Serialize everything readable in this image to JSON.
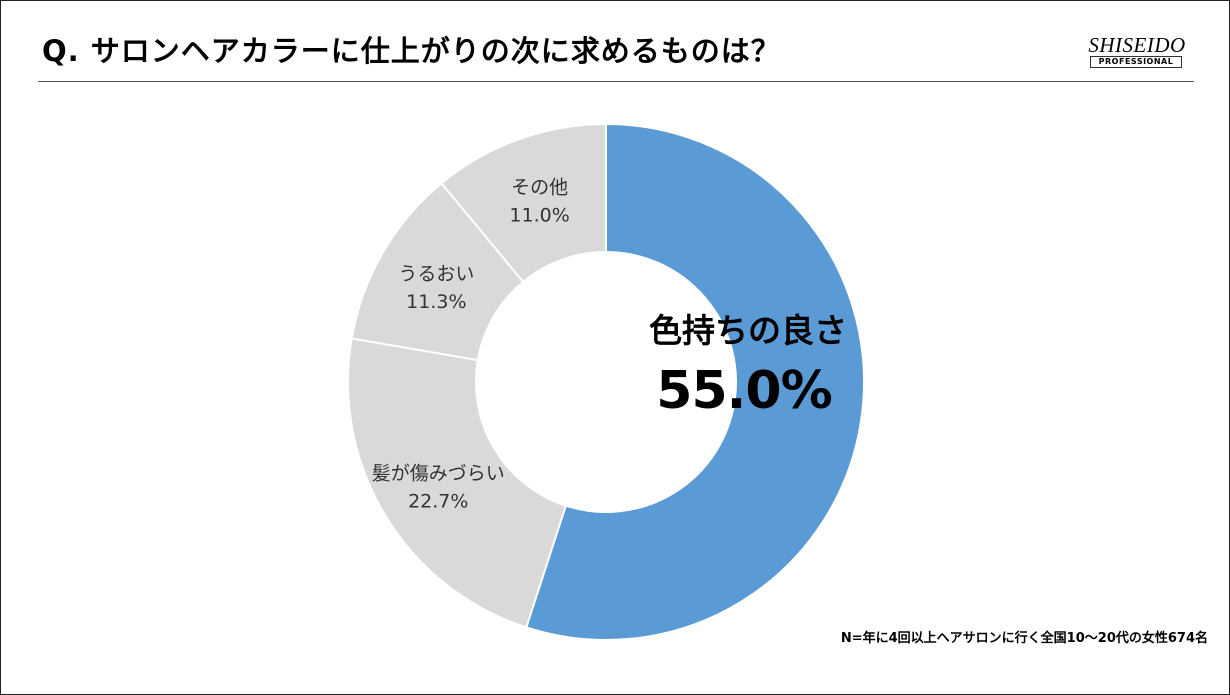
{
  "header": {
    "title": "Q. サロンヘアカラーに仕上がりの次に求めるものは？"
  },
  "logo": {
    "name": "SHISEIDO",
    "sub": "PROFESSIONAL"
  },
  "chart_data": {
    "type": "pie",
    "variant": "donut",
    "title": "Q. サロンヘアカラーに仕上がりの次に求めるものは？",
    "categories": [
      "色持ちの良さ",
      "髪が傷みづらい",
      "うるおい",
      "その他"
    ],
    "values": [
      55.0,
      22.7,
      11.3,
      11.0
    ],
    "value_labels": [
      "55.0%",
      "22.7%",
      "11.3%",
      "11.0%"
    ],
    "colors": [
      "#5b9bd5",
      "#d9d9d9",
      "#d9d9d9",
      "#d9d9d9"
    ],
    "start_angle_deg": 0,
    "direction": "clockwise",
    "highlight_index": 0
  },
  "footnote": "N=年に4回以上ヘアサロンに行く全国10〜20代の女性674名"
}
